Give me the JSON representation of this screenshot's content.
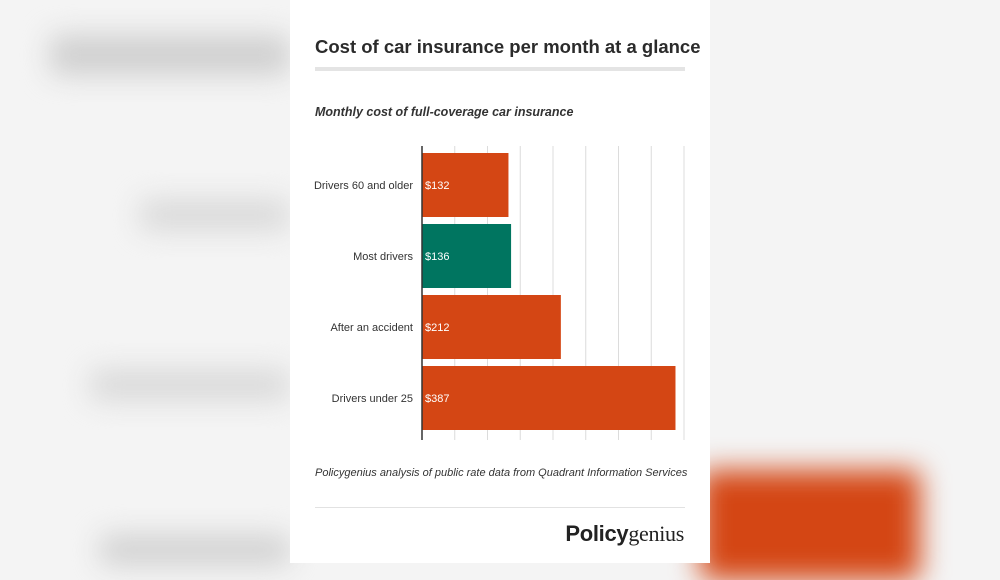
{
  "title": "Cost of car insurance per month at a glance",
  "subtitle": "Monthly cost of full-coverage car insurance",
  "source": "Policygenius analysis of public rate data from Quadrant Information Services",
  "logo": {
    "bold": "Policy",
    "regular": "genius"
  },
  "colors": {
    "default_bar": "#d44614",
    "highlight_bar": "#007560",
    "grid": "#dcdcdc",
    "axis": "#333333"
  },
  "chart_data": {
    "type": "bar",
    "orientation": "horizontal",
    "categories": [
      "Drivers 60 and older",
      "Most drivers",
      "After an accident",
      "Drivers under 25"
    ],
    "values": [
      132,
      136,
      212,
      387
    ],
    "data_labels": [
      "$132",
      "$136",
      "$212",
      "$387"
    ],
    "highlight": "Most drivers",
    "xlim": [
      0,
      400
    ],
    "grid": true,
    "grid_step": 50,
    "title": "Monthly cost of full-coverage car insurance"
  }
}
